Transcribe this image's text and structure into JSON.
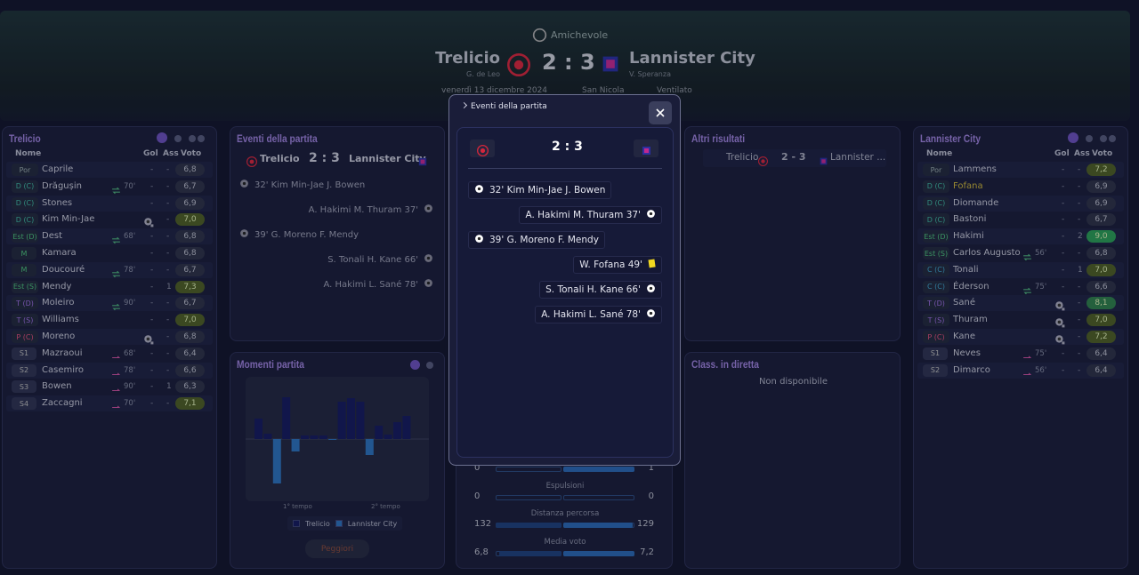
{
  "header": {
    "competition": "Amichevole",
    "home": "Trelicio",
    "home_coach": "G. de Leo",
    "score": "2 : 3",
    "away": "Lannister City",
    "away_coach": "V. Speranza",
    "date": "venerdì 13 dicembre 2024",
    "stadium": "San Nicola",
    "weather": "Ventilato"
  },
  "home_lineup": {
    "title": "Trelicio",
    "columns": [
      "Nome",
      "Gol",
      "Ass",
      "Voto"
    ],
    "players": [
      {
        "pos": "Por",
        "name": "Caprile",
        "gol": "-",
        "ass": "-",
        "voto": "6,8"
      },
      {
        "pos": "D (C)",
        "name": "Drăgușin",
        "sub": "70'",
        "gol": "-",
        "ass": "-",
        "voto": "6,7"
      },
      {
        "pos": "D (C)",
        "name": "Stones",
        "gol": "-",
        "ass": "-",
        "voto": "6,9"
      },
      {
        "pos": "D (C)",
        "name": "Kim Min-Jae",
        "gol": 1,
        "ass": "-",
        "voto": "7,0"
      },
      {
        "pos": "Est (D)",
        "name": "Dest",
        "sub": "68'",
        "gol": "-",
        "ass": "-",
        "voto": "6,8"
      },
      {
        "pos": "M",
        "name": "Kamara",
        "gol": "-",
        "ass": "-",
        "voto": "6,8"
      },
      {
        "pos": "M",
        "name": "Doucouré",
        "sub": "78'",
        "gol": "-",
        "ass": "-",
        "voto": "6,7"
      },
      {
        "pos": "Est (S)",
        "name": "Mendy",
        "gol": "-",
        "ass": "1",
        "voto": "7,3"
      },
      {
        "pos": "T (D)",
        "name": "Moleiro",
        "sub": "90'",
        "gol": "-",
        "ass": "-",
        "voto": "6,7"
      },
      {
        "pos": "T (S)",
        "name": "Williams",
        "gol": "-",
        "ass": "-",
        "voto": "7,0"
      },
      {
        "pos": "P (C)",
        "name": "Moreno",
        "gol": 1,
        "ass": "-",
        "voto": "6,8"
      },
      {
        "pos": "S1",
        "name": "Mazraoui",
        "sub": "68'",
        "gol": "-",
        "ass": "-",
        "voto": "6,4"
      },
      {
        "pos": "S2",
        "name": "Casemiro",
        "sub": "78'",
        "gol": "-",
        "ass": "-",
        "voto": "6,6"
      },
      {
        "pos": "S3",
        "name": "Bowen",
        "sub": "90'",
        "gol": "-",
        "ass": "1",
        "voto": "6,3"
      },
      {
        "pos": "S4",
        "name": "Zaccagni",
        "sub": "70'",
        "gol": "-",
        "ass": "-",
        "voto": "7,1"
      }
    ]
  },
  "away_lineup": {
    "title": "Lannister City",
    "columns": [
      "Nome",
      "Gol",
      "Ass",
      "Voto"
    ],
    "players": [
      {
        "pos": "Por",
        "name": "Lammens",
        "gol": "-",
        "ass": "-",
        "voto": "7,2"
      },
      {
        "pos": "D (C)",
        "name": "Fofana",
        "gol": "-",
        "ass": "-",
        "voto": "6,9",
        "booked": true
      },
      {
        "pos": "D (C)",
        "name": "Diomande",
        "gol": "-",
        "ass": "-",
        "voto": "6,9"
      },
      {
        "pos": "D (C)",
        "name": "Bastoni",
        "gol": "-",
        "ass": "-",
        "voto": "6,7"
      },
      {
        "pos": "Est (D)",
        "name": "Hakimi",
        "gol": "-",
        "ass": "2",
        "voto": "9,0"
      },
      {
        "pos": "Est (S)",
        "name": "Carlos Augusto",
        "sub": "56'",
        "gol": "-",
        "ass": "-",
        "voto": "6,8"
      },
      {
        "pos": "C (C)",
        "name": "Tonali",
        "gol": "-",
        "ass": "1",
        "voto": "7,0"
      },
      {
        "pos": "C (C)",
        "name": "Éderson",
        "sub": "75'",
        "gol": "-",
        "ass": "-",
        "voto": "6,6"
      },
      {
        "pos": "T (D)",
        "name": "Sané",
        "gol": 1,
        "ass": "-",
        "voto": "8,1"
      },
      {
        "pos": "T (S)",
        "name": "Thuram",
        "gol": 1,
        "ass": "-",
        "voto": "7,0"
      },
      {
        "pos": "P (C)",
        "name": "Kane",
        "gol": 1,
        "ass": "-",
        "voto": "7,2"
      },
      {
        "pos": "S1",
        "name": "Neves",
        "sub": "75'",
        "gol": "-",
        "ass": "-",
        "voto": "6,4"
      },
      {
        "pos": "S2",
        "name": "Dimarco",
        "sub": "56'",
        "gol": "-",
        "ass": "-",
        "voto": "6,4"
      }
    ]
  },
  "events_panel": {
    "title": "Eventi della partita",
    "home": "Trelicio",
    "score": "2 : 3",
    "away": "Lannister City"
  },
  "events": [
    {
      "side": "home",
      "type": "goal",
      "text": "32' Kim Min-Jae J. Bowen"
    },
    {
      "side": "away",
      "type": "goal",
      "text": "A. Hakimi M. Thuram 37'"
    },
    {
      "side": "home",
      "type": "goal",
      "text": "39' G. Moreno F. Mendy"
    },
    {
      "side": "away",
      "type": "card",
      "text": "W. Fofana 49'"
    },
    {
      "side": "away",
      "type": "goal",
      "text": "S. Tonali H. Kane 66'"
    },
    {
      "side": "away",
      "type": "goal",
      "text": "A. Hakimi L. Sané 78'"
    }
  ],
  "momentum": {
    "title": "Momenti partita",
    "button": "Peggiori",
    "halves": [
      "1° tempo",
      "2° tempo"
    ],
    "chart_data": {
      "type": "bar",
      "ylim": [
        -70,
        70
      ],
      "series": [
        {
          "name": "Trelicio",
          "color": "#141a5c",
          "values": [
            23,
            6,
            null,
            47,
            null,
            4,
            4,
            4,
            null,
            42,
            46,
            42,
            null,
            15,
            5,
            19,
            26
          ]
        },
        {
          "name": "Lannister City",
          "color": "#2b6fb8",
          "values": [
            null,
            null,
            -50,
            null,
            -14,
            null,
            null,
            null,
            -1,
            null,
            null,
            null,
            -18,
            null,
            null,
            null,
            null
          ]
        }
      ]
    }
  },
  "other_results": {
    "title": "Altri risultati",
    "home": "Trelicio",
    "score": "2 - 3",
    "away": "Lannister ..."
  },
  "live_table": {
    "title": "Class. in diretta",
    "text": "Non disponibile"
  },
  "stats": [
    {
      "home": 0,
      "away": 1
    },
    {
      "label": "Espulsioni",
      "home": 0,
      "away": 0
    },
    {
      "label": "Distanza percorsa",
      "home": 132,
      "away": 129
    },
    {
      "label": "Media voto",
      "home": 6.8,
      "home_label": "6,8",
      "away": 7.2,
      "away_label": "7,2"
    }
  ],
  "modal": {
    "title": "Eventi della partita",
    "score": "2 : 3"
  }
}
